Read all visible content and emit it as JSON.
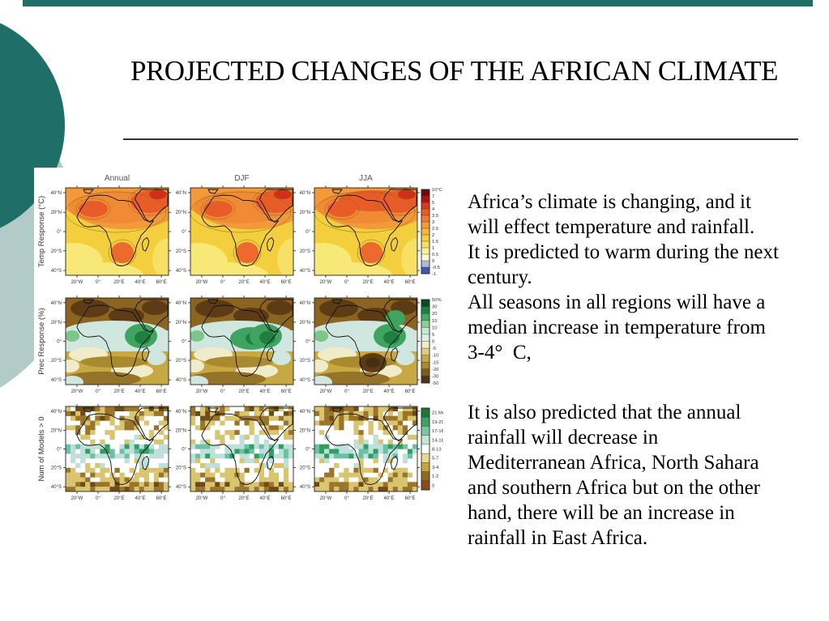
{
  "slide": {
    "title": "PROJECTED CHANGES OF THE AFRICAN CLIMATE"
  },
  "decor": {
    "top_bar_color": "#1f6f68",
    "dark_circle_color": "#1f6f68",
    "light_circle_color": "#b2cbc8"
  },
  "body": {
    "para1": "Africa’s climate is changing, and it\nwill effect temperature and rainfall.\nIt is predicted to warm during the next\ncentury.\nAll seasons in all regions will have a\nmedian increase in temperature from\n3-4°  C,",
    "para2": "It is also predicted that the annual\nrainfall will decrease in\nMediterranean Africa, North Sahara\nand southern Africa but on the other\nhand, there will be an increase in\nrainfall in East Africa."
  },
  "figure": {
    "type": "map-grid",
    "column_titles": [
      "Annual",
      "DJF",
      "JJA"
    ],
    "row_labels": [
      "Temp Response (°C)",
      "Prec Response (%)",
      "Num of Models > 0"
    ],
    "y_tick_labels": [
      "40°N",
      "20°N",
      "0°",
      "20°S",
      "40°S"
    ],
    "x_tick_labels": [
      "20°W",
      "0°",
      "20°E",
      "40°E",
      "60°E"
    ],
    "colorbars": [
      {
        "name": "temperature-scale",
        "label_mode": "boundary",
        "labels": [
          "10°C",
          "7",
          "5",
          "4",
          "3.5",
          "3",
          "2.5",
          "2",
          "1.5",
          "1",
          "0.5",
          "0",
          "-0.5",
          "-1"
        ],
        "colors": [
          "#6e0b0b",
          "#b01212",
          "#d93a1c",
          "#ea5c26",
          "#f07a30",
          "#f2993a",
          "#f3b83d",
          "#f3cf3d",
          "#f6e065",
          "#faee9d",
          "#fdf9d8",
          "#aebcdc",
          "#3f57a8"
        ]
      },
      {
        "name": "precipitation-scale",
        "label_mode": "boundary",
        "labels": [
          "50%",
          "30",
          "20",
          "15",
          "10",
          "5",
          "0",
          "-5",
          "-10",
          "-15",
          "-20",
          "-30",
          "-50"
        ],
        "colors": [
          "#0b4a23",
          "#1e7f40",
          "#44aa60",
          "#8ccf92",
          "#c9e8d4",
          "#daf0e6",
          "#f0ecca",
          "#dfcc86",
          "#c7a843",
          "#a98a2e",
          "#7d5c1e",
          "#4f3512"
        ]
      },
      {
        "name": "model-count-scale",
        "label_mode": "segment",
        "labels": [
          "21 Models",
          "19-20",
          "17-18",
          "14-16",
          "8-13",
          "5-7",
          "3-4",
          "1-2",
          "0"
        ],
        "colors": [
          "#1b7837",
          "#41a064",
          "#7cc5a2",
          "#c6e3da",
          "#ffffff",
          "#e6d88e",
          "#c7a53e",
          "#8f6a22",
          "#8a4a1a"
        ]
      }
    ]
  }
}
